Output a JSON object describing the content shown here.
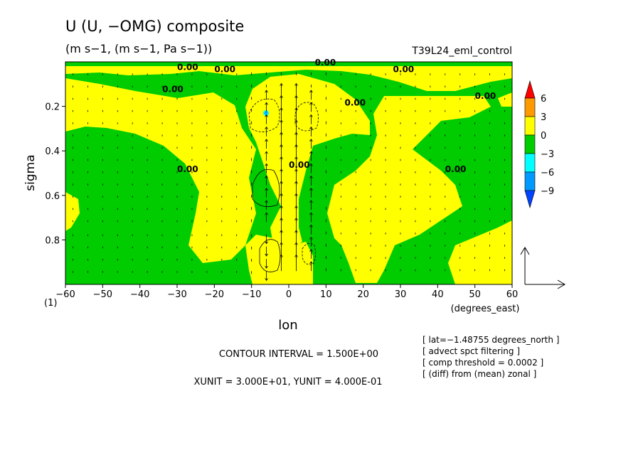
{
  "chart_data": {
    "type": "heatmap",
    "title": "U (U, −OMG) composite",
    "subtitle": "(m s−1, (m s−1, Pa s−1))",
    "experiment": "T39L24_eml_control",
    "xlabel": "lon",
    "xunit_label": "(degrees_east)",
    "ylabel": "sigma",
    "corner_label": "(1)",
    "xlim": [
      -60,
      60
    ],
    "ylim": [
      0.0,
      1.0
    ],
    "y_inverted": true,
    "x_ticks": [
      "−60",
      "−50",
      "−40",
      "−30",
      "−20",
      "−10",
      "0",
      "10",
      "20",
      "30",
      "40",
      "50",
      "60"
    ],
    "y_ticks": [
      "0.2",
      "0.4",
      "0.6",
      "0.8"
    ],
    "colorbar": {
      "labels": [
        "6",
        "3",
        "0",
        "−3",
        "−6",
        "−9"
      ],
      "bins": [
        {
          "range": "> 6",
          "color": "#ff0000"
        },
        {
          "range": "3 to 6",
          "color": "#ff9900"
        },
        {
          "range": "0 to 3",
          "color": "#ffff00"
        },
        {
          "range": "−3 to 0",
          "color": "#00cc00"
        },
        {
          "range": "−6 to −3",
          "color": "#00ffff"
        },
        {
          "range": "−9 to −6",
          "color": "#0099ff"
        },
        {
          "range": "< −9",
          "color": "#0044ff"
        }
      ]
    },
    "contour_labels": [
      "0.00",
      "0.00",
      "0.00",
      "0.00",
      "0.00",
      "0.00",
      "0.00",
      "0.00",
      "0.00",
      "0.00"
    ],
    "vector_field": {
      "description": "vertical motion vectors, strongest ascent near lon -5 to 5",
      "max_ascent_lon": [
        -5,
        5
      ]
    },
    "footer": {
      "contour_interval": "CONTOUR INTERVAL = 1.500E+00",
      "units": "XUNIT = 3.000E+01, YUNIT = 4.000E-01"
    },
    "notes": [
      "[ lat=−1.48755 degrees_north ]",
      "[ advect spct filtering ]",
      "[ comp threshold = 0.0002 ]",
      "[ (diff) from (mean) zonal ]"
    ]
  }
}
